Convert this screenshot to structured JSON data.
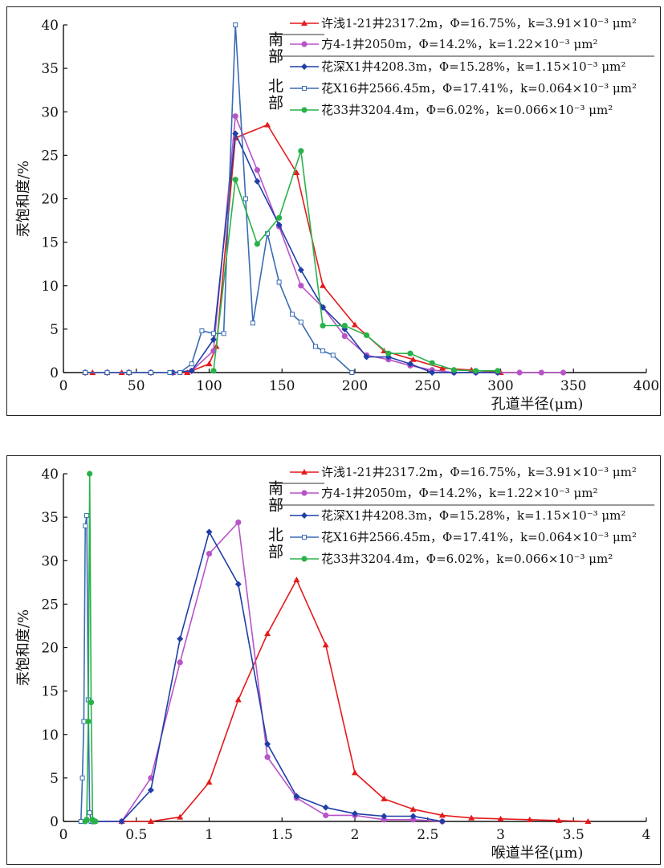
{
  "chart_data": [
    {
      "type": "line",
      "xlabel": "孔道半径(μm)",
      "ylabel": "汞饱和度/%",
      "xlim": [
        0,
        400
      ],
      "ylim": [
        0,
        40
      ],
      "xticks": [
        0,
        50,
        100,
        150,
        200,
        250,
        300,
        350,
        400
      ],
      "yticks": [
        0,
        5,
        10,
        15,
        20,
        25,
        30,
        35,
        40
      ],
      "grid": false,
      "legend_position": "top-right",
      "legend_groups": [
        {
          "label": "南部",
          "series": [
            0,
            1
          ]
        },
        {
          "label": "北部",
          "series": [
            2,
            3,
            4
          ]
        }
      ],
      "series": [
        {
          "name": "许浅1-21井2317.2m，Φ=16.75%，k=3.91×10⁻³ μm²",
          "color": "#e41a1c",
          "marker": "triangle",
          "x": [
            15,
            20,
            30,
            40,
            45,
            60,
            75,
            85,
            100,
            105,
            118,
            140,
            160,
            178,
            200,
            220,
            240,
            260,
            280,
            300
          ],
          "y": [
            0,
            0,
            0,
            0,
            0,
            0,
            0,
            0,
            1,
            3,
            27,
            28.5,
            23,
            10,
            5.5,
            2.5,
            1.5,
            0.5,
            0.3,
            0
          ]
        },
        {
          "name": "方4-1井2050m，Φ=14.2%，k=1.22×10⁻³ μm²",
          "color": "#b854c8",
          "marker": "circle",
          "x": [
            15,
            30,
            45,
            60,
            75,
            88,
            103,
            118,
            133,
            148,
            163,
            178,
            193,
            208,
            223,
            238,
            253,
            268,
            283,
            298,
            313,
            328,
            343
          ],
          "y": [
            0,
            0,
            0,
            0,
            0,
            0.2,
            2.5,
            29.5,
            23.3,
            16.8,
            10,
            7.5,
            4.2,
            2,
            1.5,
            0.8,
            0.3,
            0,
            0,
            0,
            0,
            0,
            0
          ]
        },
        {
          "name": "花深X1井4208.3m，Φ=15.28%，k=1.15×10⁻³ μm²",
          "color": "#1f3ea8",
          "marker": "diamond",
          "x": [
            15,
            30,
            45,
            60,
            75,
            88,
            103,
            118,
            133,
            148,
            163,
            178,
            193,
            208,
            223,
            238,
            253,
            268,
            283,
            298
          ],
          "y": [
            0,
            0,
            0,
            0,
            0,
            0.2,
            3.8,
            27.5,
            22,
            17,
            11.8,
            7.5,
            5,
            1.8,
            1.8,
            1,
            0,
            0,
            0,
            0
          ]
        },
        {
          "name": "花X16井2566.45m，Φ=17.41%，k=0.064×10⁻³ μm²",
          "color": "#3a6cb3",
          "marker": "square-open",
          "x": [
            15,
            30,
            45,
            60,
            73,
            80,
            88,
            95,
            103,
            110,
            118,
            125,
            130,
            140,
            148,
            157,
            163,
            173,
            178,
            185,
            198
          ],
          "y": [
            0,
            0,
            0,
            0,
            0,
            0,
            1,
            4.8,
            4.5,
            4.5,
            40,
            20,
            5.7,
            16,
            10.4,
            6.7,
            5.8,
            3,
            2.5,
            2,
            0
          ]
        },
        {
          "name": "花33井3204.4m，Φ=6.02%，k=0.066×10⁻³ μm²",
          "color": "#2ab24a",
          "marker": "circle",
          "x": [
            103,
            118,
            133,
            148,
            163,
            178,
            193,
            208,
            223,
            238,
            253,
            268,
            283,
            298
          ],
          "y": [
            0.2,
            22.2,
            14.8,
            17.8,
            25.5,
            5.4,
            5.4,
            4.3,
            2.2,
            2.2,
            1.1,
            0.3,
            0.2,
            0.2
          ]
        }
      ]
    },
    {
      "type": "line",
      "xlabel": "喉道半径(μm)",
      "ylabel": "汞饱和度/%",
      "xlim": [
        0,
        4
      ],
      "ylim": [
        0,
        40
      ],
      "xticks": [
        0,
        0.5,
        1,
        1.5,
        2,
        2.5,
        3,
        3.5,
        4
      ],
      "yticks": [
        0,
        5,
        10,
        15,
        20,
        25,
        30,
        35,
        40
      ],
      "grid": false,
      "legend_position": "top-right",
      "legend_groups": [
        {
          "label": "南部",
          "series": [
            0,
            1
          ]
        },
        {
          "label": "北部",
          "series": [
            2,
            3,
            4
          ]
        }
      ],
      "series": [
        {
          "name": "许浅1-21井2317.2m，Φ=16.75%，k=3.91×10⁻³ μm²",
          "color": "#e41a1c",
          "marker": "triangle",
          "x": [
            0.4,
            0.6,
            0.8,
            1.0,
            1.2,
            1.4,
            1.6,
            1.8,
            2.0,
            2.2,
            2.4,
            2.6,
            2.8,
            3.0,
            3.2,
            3.4,
            3.6
          ],
          "y": [
            0,
            0,
            0.5,
            4.5,
            14,
            21.6,
            27.8,
            20.3,
            5.6,
            2.6,
            1.4,
            0.7,
            0.4,
            0.3,
            0.2,
            0.1,
            0
          ]
        },
        {
          "name": "方4-1井2050m，Φ=14.2%，k=1.22×10⁻³ μm²",
          "color": "#b854c8",
          "marker": "circle",
          "x": [
            0.2,
            0.4,
            0.6,
            0.8,
            1.0,
            1.2,
            1.4,
            1.6,
            1.8,
            2.0,
            2.2,
            2.4,
            2.6
          ],
          "y": [
            0,
            0,
            5,
            18.3,
            30.8,
            34.4,
            7.4,
            2.7,
            0.7,
            0.7,
            0.2,
            0.2,
            0
          ]
        },
        {
          "name": "花深X1井4208.3m，Φ=15.28%，k=1.15×10⁻³ μm²",
          "color": "#1f3ea8",
          "marker": "diamond",
          "x": [
            0.2,
            0.4,
            0.6,
            0.8,
            1.0,
            1.2,
            1.4,
            1.6,
            1.8,
            2.0,
            2.2,
            2.4,
            2.6
          ],
          "y": [
            0,
            0,
            3.6,
            21,
            33.3,
            27.3,
            8.9,
            2.9,
            1.6,
            0.9,
            0.6,
            0.6,
            0
          ]
        },
        {
          "name": "花X16井2566.45m，Φ=17.41%，k=0.064×10⁻³ μm²",
          "color": "#3a6cb3",
          "marker": "square-open",
          "x": [
            0.12,
            0.13,
            0.14,
            0.15,
            0.16,
            0.17,
            0.18,
            0.19,
            0.2
          ],
          "y": [
            0,
            5,
            11.5,
            34,
            35.2,
            14,
            1,
            0,
            0
          ]
        },
        {
          "name": "花33井3204.4m，Φ=6.02%，k=0.066×10⁻³ μm²",
          "color": "#2ab24a",
          "marker": "circle",
          "x": [
            0.15,
            0.16,
            0.17,
            0.18,
            0.19,
            0.2,
            0.21,
            0.22
          ],
          "y": [
            0,
            0.2,
            11.5,
            40,
            13.7,
            0.2,
            0,
            0
          ]
        }
      ]
    }
  ]
}
